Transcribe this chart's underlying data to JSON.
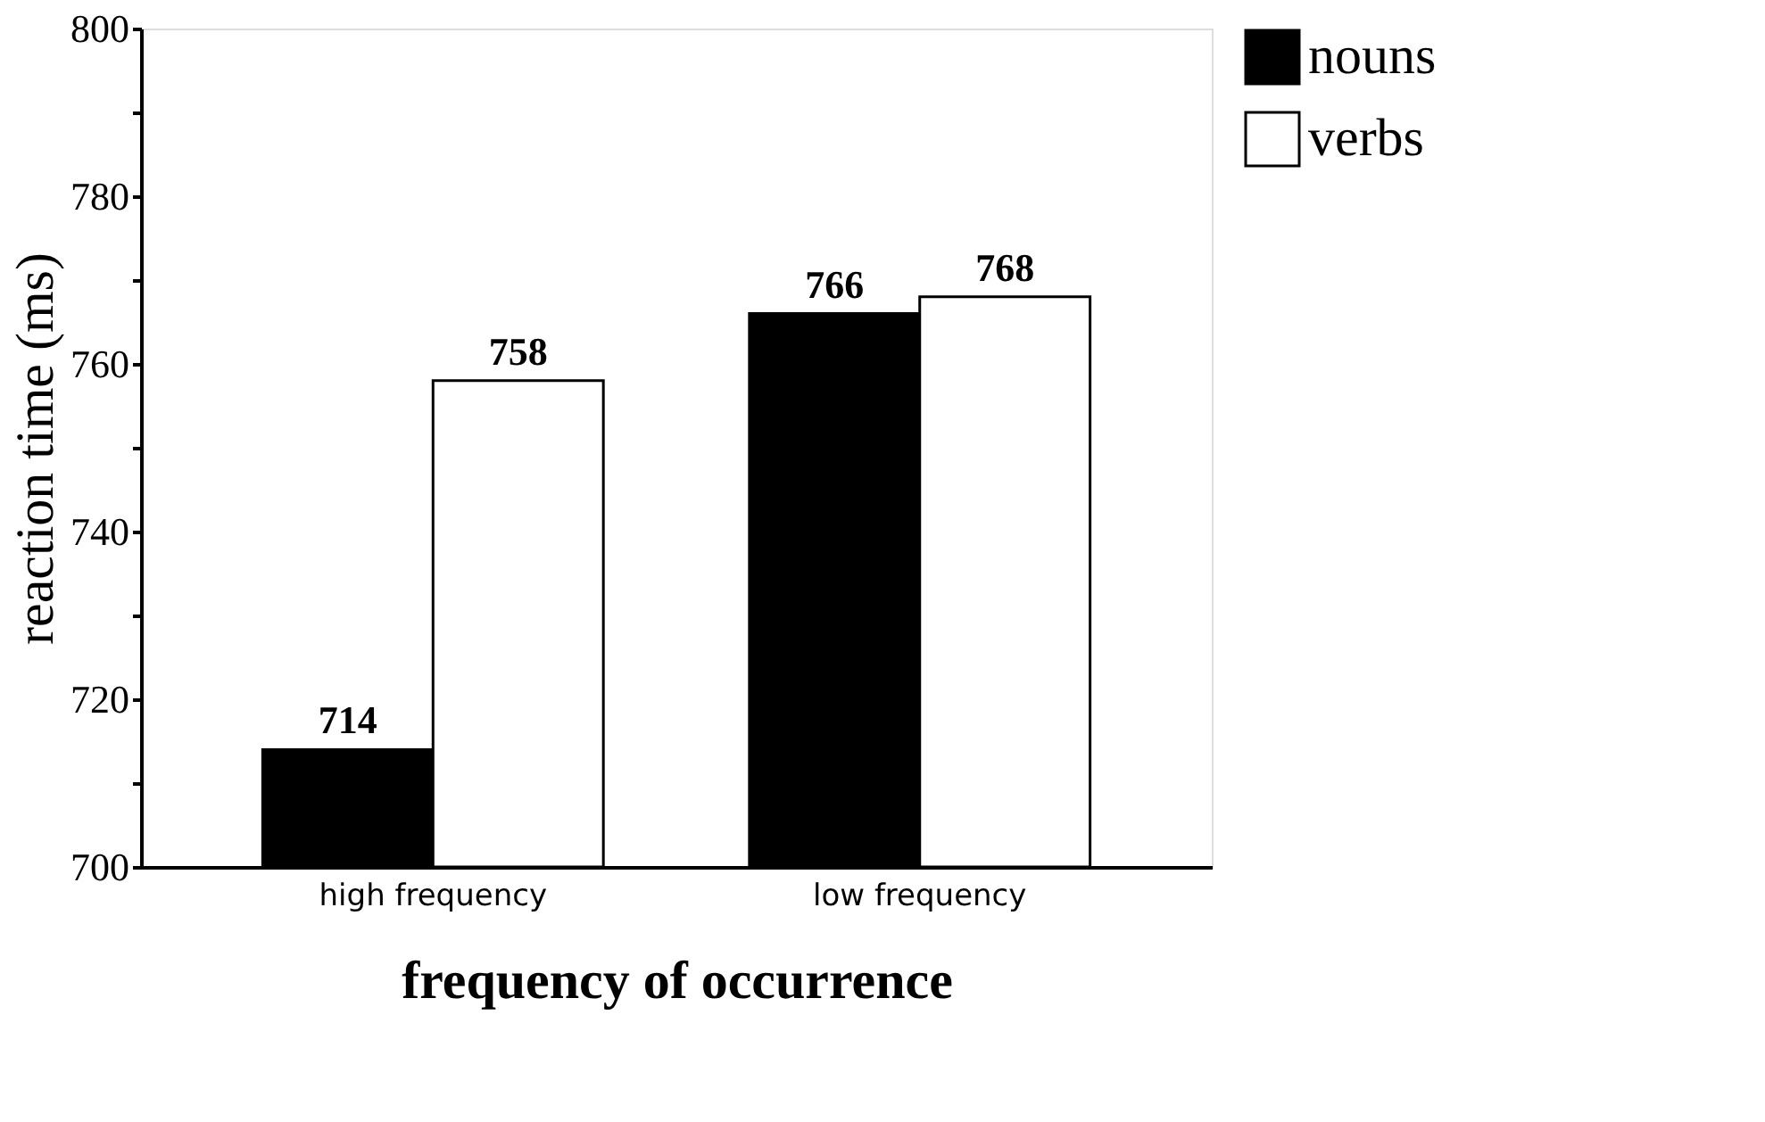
{
  "chart_data": {
    "type": "bar",
    "xlabel": "frequency of occurrence",
    "ylabel": "reaction time (ms)",
    "categories": [
      "high  frequency",
      "low  frequency"
    ],
    "series": [
      {
        "name": "nouns",
        "color": "#000000",
        "values": [
          714,
          766
        ]
      },
      {
        "name": "verbs",
        "color": "#ffffff",
        "values": [
          758,
          768
        ]
      }
    ],
    "ylim": [
      700,
      800
    ],
    "yticks": [
      700,
      {
        "value": 710,
        "label": null
      },
      720,
      {
        "value": 730,
        "label": null
      },
      740,
      {
        "value": 750,
        "label": null
      },
      760,
      {
        "value": 770,
        "label": null
      },
      780,
      {
        "value": 790,
        "label": null
      },
      800
    ],
    "data_labels": true,
    "grid": false,
    "legend": "top right"
  }
}
